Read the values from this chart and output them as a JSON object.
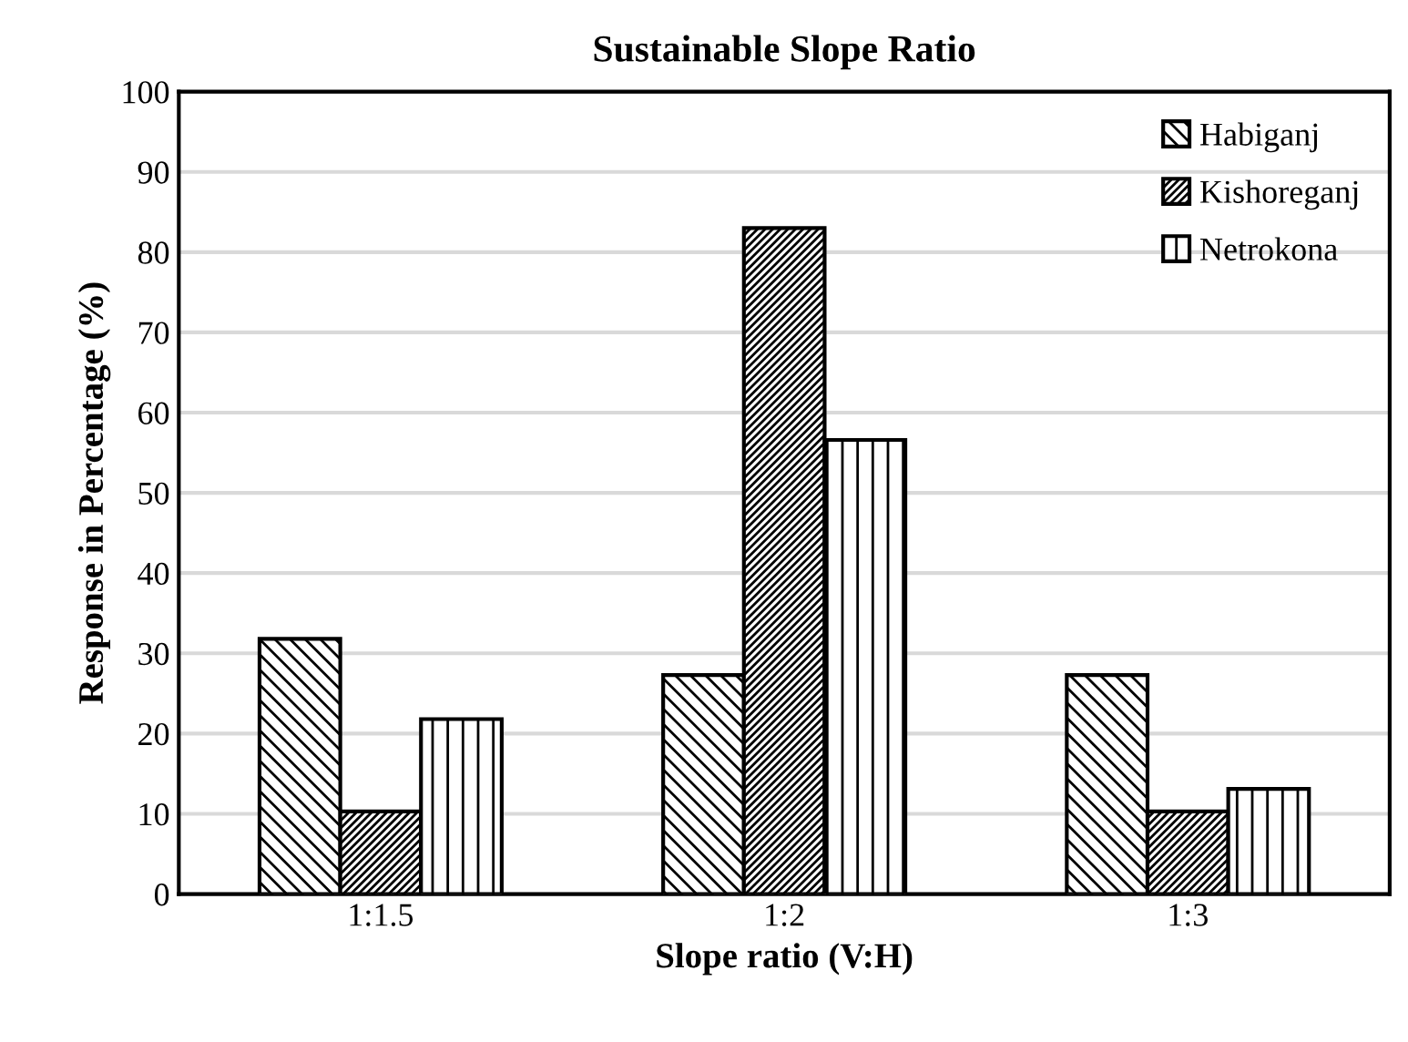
{
  "chart_data": {
    "type": "bar",
    "title": "Sustainable Slope Ratio",
    "xlabel": "Slope ratio (V:H)",
    "ylabel": "Response in Percentage (%)",
    "categories": [
      "1:1.5",
      "1:2",
      "1:3"
    ],
    "series": [
      {
        "name": "Habiganj",
        "color": "#000000",
        "values": [
          31.8,
          27.3,
          27.3
        ]
      },
      {
        "name": "Kishoreganj",
        "color": "#000000",
        "values": [
          10.3,
          83.0,
          10.3
        ]
      },
      {
        "name": "Netrokona",
        "color": "#000000",
        "values": [
          21.8,
          56.6,
          13.1
        ]
      }
    ],
    "ylim": [
      0,
      100
    ],
    "yticks": [
      0,
      10,
      20,
      30,
      40,
      50,
      60,
      70,
      80,
      90,
      100
    ],
    "grid": "y",
    "legend": "top right"
  }
}
